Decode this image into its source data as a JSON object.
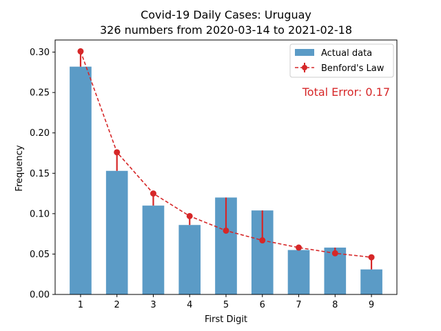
{
  "chart_data": {
    "type": "bar",
    "title": "Covid-19 Daily Cases: Uruguay",
    "subtitle": "326 numbers from 2020-03-14 to 2021-02-18",
    "xlabel": "First Digit",
    "ylabel": "Frequency",
    "categories": [
      "1",
      "2",
      "3",
      "4",
      "5",
      "6",
      "7",
      "8",
      "9"
    ],
    "ylim": [
      0,
      0.3
    ],
    "yticks": [
      "0.00",
      "0.05",
      "0.10",
      "0.15",
      "0.20",
      "0.25",
      "0.30"
    ],
    "series": [
      {
        "name": "Actual data",
        "type": "bar",
        "color": "#5b9bc6",
        "values": [
          0.282,
          0.153,
          0.11,
          0.086,
          0.12,
          0.104,
          0.055,
          0.058,
          0.031
        ]
      },
      {
        "name": "Benford's Law",
        "type": "line",
        "style": "dashed, circle markers, error bars to actual",
        "color": "#d62728",
        "values": [
          0.301,
          0.176,
          0.125,
          0.097,
          0.079,
          0.067,
          0.058,
          0.051,
          0.046
        ]
      }
    ],
    "annotation": {
      "text": "Total Error: 0.17",
      "color": "#d62728"
    },
    "legend_position": "top-right",
    "grid": false
  }
}
